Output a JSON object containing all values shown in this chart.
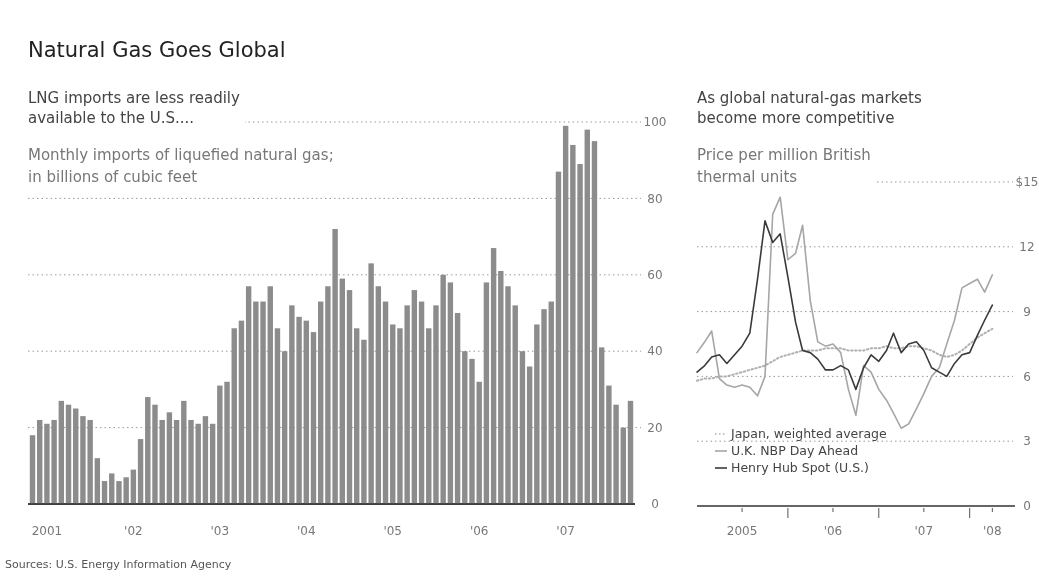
{
  "chart_data": [
    {
      "type": "bar",
      "title": "Natural Gas Goes Global",
      "subtitle": "LNG imports are less readily available to the U.S....",
      "ylabel": "Monthly imports of liquefied natural gas; in billions of cubic feet",
      "categories": [
        null,
        null,
        "2001",
        null,
        null,
        null,
        null,
        null,
        null,
        null,
        null,
        null,
        null,
        null,
        "'02",
        null,
        null,
        null,
        null,
        null,
        null,
        null,
        null,
        null,
        null,
        null,
        "'03",
        null,
        null,
        null,
        null,
        null,
        null,
        null,
        null,
        null,
        null,
        null,
        "'04",
        null,
        null,
        null,
        null,
        null,
        null,
        null,
        null,
        null,
        null,
        null,
        "'05",
        null,
        null,
        null,
        null,
        null,
        null,
        null,
        null,
        null,
        null,
        null,
        "'06",
        null,
        null,
        null,
        null,
        null,
        null,
        null,
        null,
        null,
        null,
        null,
        "'07",
        null,
        null,
        null,
        null,
        null,
        null,
        null,
        null,
        null
      ],
      "values": [
        18,
        22,
        21,
        22,
        27,
        26,
        25,
        23,
        22,
        12,
        6,
        8,
        6,
        7,
        9,
        17,
        28,
        26,
        22,
        24,
        22,
        27,
        22,
        21,
        23,
        21,
        31,
        32,
        46,
        48,
        57,
        53,
        53,
        57,
        46,
        40,
        52,
        49,
        48,
        45,
        53,
        57,
        72,
        59,
        56,
        46,
        43,
        63,
        57,
        53,
        47,
        46,
        52,
        56,
        53,
        46,
        52,
        60,
        58,
        50,
        40,
        38,
        32,
        58,
        67,
        61,
        57,
        52,
        40,
        36,
        47,
        51,
        53,
        87,
        99,
        94,
        89,
        98,
        95,
        41,
        31,
        26,
        20,
        27
      ],
      "color": "#8c8c8c",
      "ylim": [
        0,
        100
      ],
      "yticks": [
        0,
        20,
        40,
        60,
        80,
        100
      ],
      "grid": "y",
      "annotations": [
        "Sources: U.S. Energy Information Agency"
      ]
    },
    {
      "type": "line",
      "title": "As global natural-gas markets become more competitive",
      "ylabel": "Price per million British thermal units",
      "x": [
        "2005-01",
        "2005-02",
        "2005-03",
        "2005-04",
        "2005-05",
        "2005-06",
        "2005-07",
        "2005-08",
        "2005-09",
        "2005-10",
        "2005-11",
        "2005-12",
        "2006-01",
        "2006-02",
        "2006-03",
        "2006-04",
        "2006-05",
        "2006-06",
        "2006-07",
        "2006-08",
        "2006-09",
        "2006-10",
        "2006-11",
        "2006-12",
        "2007-01",
        "2007-02",
        "2007-03",
        "2007-04",
        "2007-05",
        "2007-06",
        "2007-07",
        "2007-08",
        "2007-09",
        "2007-10",
        "2007-11",
        "2007-12",
        "2008-01",
        "2008-02",
        "2008-03",
        "2008-04"
      ],
      "series": [
        {
          "name": "Japan, weighted average",
          "color": "#b0b0b0",
          "line_style": "dotted",
          "values": [
            5.8,
            5.9,
            5.9,
            6.0,
            6.0,
            6.1,
            6.2,
            6.3,
            6.4,
            6.5,
            6.7,
            6.9,
            7.0,
            7.1,
            7.2,
            7.2,
            7.2,
            7.3,
            7.3,
            7.3,
            7.2,
            7.2,
            7.2,
            7.3,
            7.3,
            7.4,
            7.3,
            7.3,
            7.4,
            7.4,
            7.3,
            7.2,
            7.0,
            6.9,
            7.0,
            7.2,
            7.5,
            7.8,
            8.0,
            8.2
          ]
        },
        {
          "name": "U.K. NBP Day Ahead",
          "color": "#a6a6a6",
          "line_style": "solid",
          "values": [
            7.1,
            7.6,
            8.1,
            5.9,
            5.6,
            5.5,
            5.6,
            5.5,
            5.1,
            6.0,
            13.5,
            14.3,
            11.4,
            11.7,
            13.0,
            9.5,
            7.6,
            7.4,
            7.5,
            7.1,
            5.4,
            4.2,
            6.5,
            6.2,
            5.4,
            4.9,
            4.3,
            3.6,
            3.8,
            4.5,
            5.2,
            6.0,
            6.4,
            7.5,
            8.6,
            10.1,
            10.3,
            10.5,
            9.9,
            10.7
          ]
        },
        {
          "name": "Henry Hub Spot (U.S.)",
          "color": "#3a3a3a",
          "line_style": "solid",
          "values": [
            6.2,
            6.5,
            6.9,
            7.0,
            6.6,
            7.0,
            7.4,
            8.0,
            10.5,
            13.2,
            12.2,
            12.6,
            10.6,
            8.5,
            7.2,
            7.1,
            6.8,
            6.3,
            6.3,
            6.5,
            6.3,
            5.4,
            6.4,
            7.0,
            6.7,
            7.2,
            8.0,
            7.1,
            7.5,
            7.6,
            7.2,
            6.4,
            6.2,
            6.0,
            6.6,
            7.0,
            7.1,
            7.9,
            8.6,
            9.3
          ]
        }
      ],
      "xlim": [
        "2005-01",
        "2008-07"
      ],
      "xticks": [
        {
          "value": "2005-07",
          "label": "2005"
        },
        {
          "value": "2006-01",
          "label": null
        },
        {
          "value": "2006-07",
          "label": "'06"
        },
        {
          "value": "2007-01",
          "label": null
        },
        {
          "value": "2007-07",
          "label": "'07"
        },
        {
          "value": "2008-01",
          "label": null
        },
        {
          "value": "2008-04",
          "label": "'08"
        }
      ],
      "ylim": [
        0,
        15
      ],
      "yticks": [
        0,
        3,
        6,
        9,
        12,
        {
          "value": 15,
          "label": "$15"
        }
      ],
      "grid": "y",
      "legend": "bottom left"
    }
  ]
}
